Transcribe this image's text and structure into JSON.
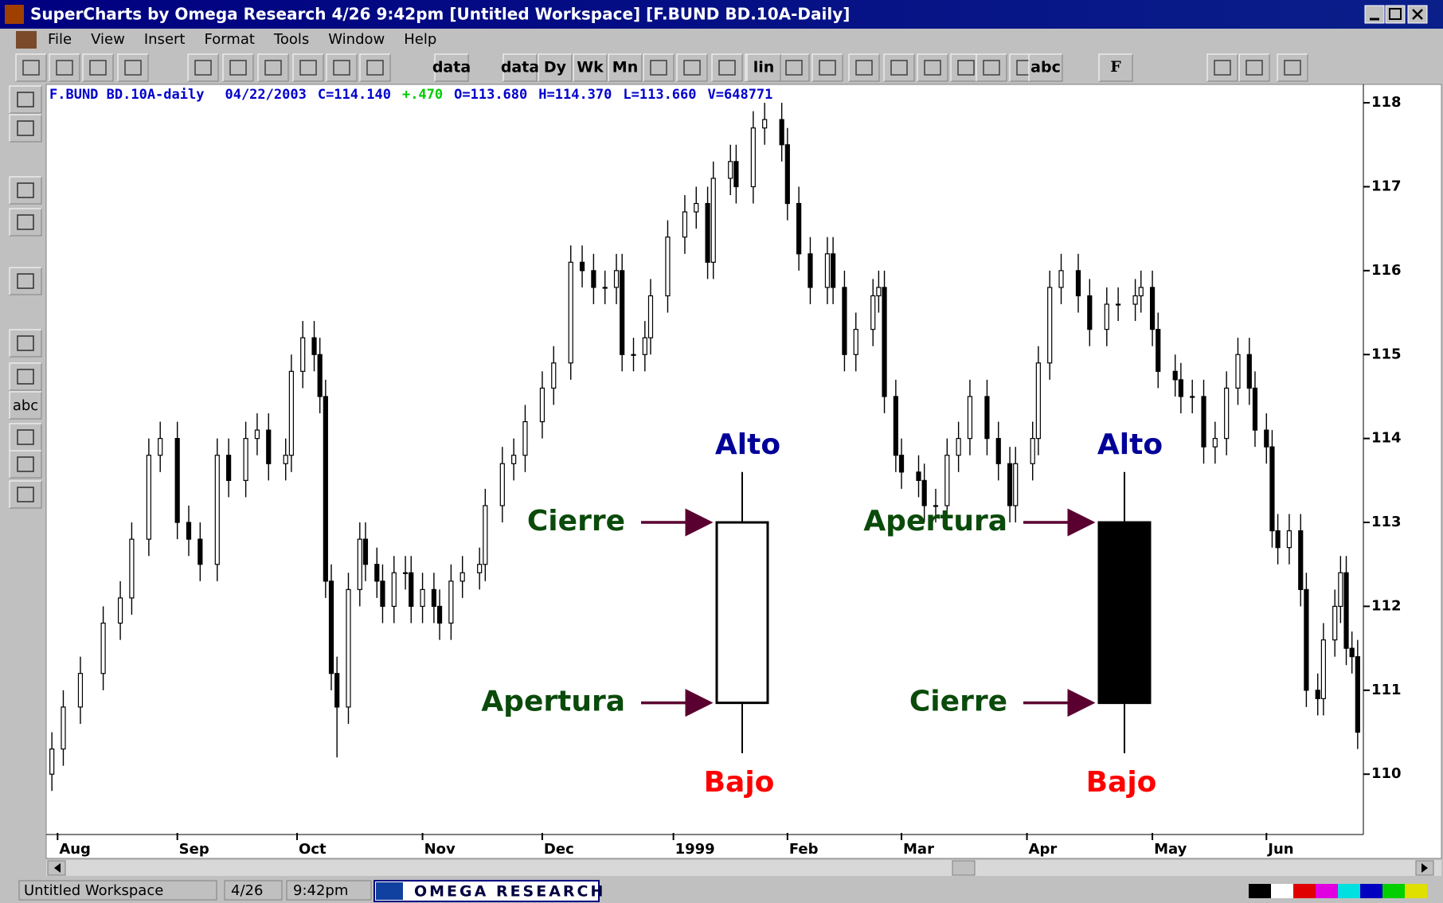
{
  "window_title": "SuperCharts by Omega Research 4/26  9:42pm [Untitled Workspace] [F.BUND BD.10A-Daily]",
  "menu": [
    "File",
    "View",
    "Insert",
    "Format",
    "Tools",
    "Window",
    "Help"
  ],
  "toolbar_labels": [
    "data",
    "data",
    "Dy",
    "Wk",
    "Mn",
    "lin",
    "abc",
    "F"
  ],
  "palette_label": "abc",
  "info": [
    {
      "text": "F.BUND BD.10A-daily",
      "color": "#0000cc"
    },
    {
      "text": "04/22/2003",
      "color": "#0000cc"
    },
    {
      "text": "C=114.140",
      "color": "#0000cc"
    },
    {
      "text": "+.470",
      "color": "#00cc00"
    },
    {
      "text": "O=113.680",
      "color": "#0000cc"
    },
    {
      "text": "H=114.370",
      "color": "#0000cc"
    },
    {
      "text": "L=113.660",
      "color": "#0000cc"
    },
    {
      "text": "V=648771",
      "color": "#0000cc"
    }
  ],
  "chart_data": {
    "type": "candlestick",
    "xlim": [
      0,
      231
    ],
    "ylim": [
      109.3,
      118.2
    ],
    "yticks": [
      110,
      111,
      112,
      113,
      114,
      115,
      116,
      117,
      118
    ],
    "xticks": [
      {
        "value": 2,
        "label": "Aug"
      },
      {
        "value": 23,
        "label": "Sep"
      },
      {
        "value": 44,
        "label": "Oct"
      },
      {
        "value": 66,
        "label": "Nov"
      },
      {
        "value": 87,
        "label": "Dec"
      },
      {
        "value": 110,
        "label": "1999"
      },
      {
        "value": 130,
        "label": "Feb"
      },
      {
        "value": 150,
        "label": "Mar"
      },
      {
        "value": 172,
        "label": "Apr"
      },
      {
        "value": 194,
        "label": "May"
      },
      {
        "value": 214,
        "label": "Jun"
      }
    ],
    "x": [
      1,
      3,
      6,
      10,
      13,
      15,
      18,
      20,
      23,
      25,
      27,
      30,
      32,
      35,
      37,
      39,
      42,
      43,
      45,
      47,
      48,
      49,
      50,
      51,
      53,
      55,
      56,
      58,
      59,
      61,
      63,
      64,
      66,
      68,
      69,
      71,
      73,
      76,
      77,
      80,
      82,
      84,
      87,
      89,
      92,
      94,
      96,
      98,
      100,
      101,
      103,
      105,
      106,
      109,
      112,
      114,
      116,
      117,
      120,
      121,
      124,
      126,
      129,
      130,
      132,
      134,
      137,
      138,
      140,
      142,
      145,
      146,
      147,
      149,
      150,
      153,
      154,
      156,
      158,
      160,
      162,
      165,
      167,
      169,
      170,
      173,
      174,
      176,
      178,
      181,
      183,
      186,
      188,
      191,
      192,
      194,
      195,
      198,
      199,
      201,
      203,
      205,
      207,
      209,
      211,
      212,
      214,
      215,
      216,
      218,
      220,
      221,
      223,
      224,
      226,
      227,
      228,
      229,
      230
    ],
    "open": [
      110.0,
      110.3,
      110.8,
      111.2,
      111.8,
      112.1,
      112.8,
      113.8,
      114.0,
      113.0,
      112.8,
      112.5,
      113.8,
      113.5,
      114.0,
      114.1,
      113.7,
      113.8,
      114.8,
      115.2,
      115.0,
      114.5,
      112.3,
      111.2,
      110.8,
      112.2,
      112.8,
      112.5,
      112.3,
      112.0,
      112.4,
      112.4,
      112.0,
      112.2,
      112.0,
      111.8,
      112.3,
      112.4,
      112.5,
      113.2,
      113.7,
      113.8,
      114.2,
      114.6,
      114.9,
      116.1,
      116.0,
      115.8,
      115.8,
      116.0,
      115.0,
      115.0,
      115.2,
      115.7,
      116.4,
      116.7,
      116.8,
      116.1,
      117.1,
      117.3,
      117.0,
      117.7,
      117.8,
      117.5,
      116.8,
      116.2,
      115.8,
      116.2,
      115.8,
      115.0,
      115.3,
      115.7,
      115.8,
      114.5,
      113.8,
      113.6,
      113.5,
      113.2,
      113.2,
      113.8,
      114.0,
      114.5,
      114.0,
      113.7,
      113.2,
      113.7,
      114.0,
      114.9,
      115.8,
      116.0,
      115.7,
      115.3,
      115.6,
      115.6,
      115.7,
      115.8,
      115.3,
      114.8,
      114.7,
      114.5,
      114.5,
      113.9,
      114.0,
      114.6,
      115.0,
      114.6,
      114.1,
      113.9,
      112.9,
      112.7,
      112.9,
      112.2,
      111.0,
      110.9,
      111.6,
      112.0,
      112.4,
      111.5,
      111.4
    ],
    "high": [
      110.5,
      111.0,
      111.4,
      112.0,
      112.3,
      113.0,
      114.0,
      114.2,
      114.2,
      113.2,
      113.0,
      114.0,
      114.0,
      114.2,
      114.3,
      114.3,
      114.0,
      115.0,
      115.4,
      115.4,
      115.2,
      114.7,
      112.5,
      111.4,
      112.4,
      113.0,
      113.0,
      112.7,
      112.5,
      112.6,
      112.6,
      112.6,
      112.4,
      112.4,
      112.2,
      112.5,
      112.6,
      112.7,
      113.4,
      113.9,
      114.0,
      114.4,
      114.8,
      115.1,
      116.3,
      116.3,
      116.2,
      116.0,
      116.2,
      116.2,
      115.2,
      115.4,
      115.9,
      116.6,
      116.9,
      117.0,
      117.0,
      117.3,
      117.5,
      117.5,
      117.9,
      118.0,
      118.0,
      117.7,
      117.0,
      116.4,
      116.4,
      116.4,
      116.0,
      115.5,
      115.9,
      116.0,
      116.0,
      114.7,
      114.0,
      113.8,
      113.7,
      113.4,
      114.0,
      114.2,
      114.7,
      114.7,
      114.2,
      113.9,
      113.9,
      114.2,
      115.1,
      116.0,
      116.2,
      116.2,
      115.9,
      115.8,
      115.8,
      115.9,
      116.0,
      116.0,
      115.5,
      115.0,
      114.9,
      114.7,
      114.7,
      114.2,
      114.8,
      115.2,
      115.2,
      114.8,
      114.3,
      114.1,
      113.1,
      113.1,
      113.1,
      112.4,
      111.2,
      111.8,
      112.2,
      112.6,
      112.6,
      111.7,
      111.6
    ],
    "low": [
      109.8,
      110.1,
      110.6,
      111.0,
      111.6,
      111.9,
      112.6,
      113.6,
      112.8,
      112.6,
      112.3,
      112.3,
      113.3,
      113.3,
      113.8,
      113.5,
      113.5,
      113.6,
      114.6,
      114.8,
      114.3,
      112.1,
      111.0,
      110.2,
      110.6,
      112.0,
      112.3,
      112.1,
      111.8,
      111.8,
      112.2,
      111.8,
      111.8,
      111.8,
      111.6,
      111.6,
      112.1,
      112.2,
      112.3,
      113.0,
      113.5,
      113.6,
      114.0,
      114.4,
      114.7,
      115.8,
      115.6,
      115.6,
      115.6,
      114.8,
      114.8,
      114.8,
      115.0,
      115.5,
      116.2,
      116.5,
      115.9,
      115.9,
      116.9,
      116.8,
      116.8,
      117.5,
      117.3,
      116.6,
      116.0,
      115.6,
      115.6,
      115.6,
      114.8,
      114.8,
      115.1,
      115.5,
      114.3,
      113.6,
      113.4,
      113.3,
      113.0,
      113.0,
      113.0,
      113.6,
      113.8,
      113.8,
      113.5,
      113.0,
      113.0,
      113.5,
      113.8,
      114.7,
      115.6,
      115.5,
      115.1,
      115.1,
      115.4,
      115.4,
      115.5,
      115.1,
      114.6,
      114.5,
      114.3,
      114.3,
      113.7,
      113.7,
      113.8,
      114.4,
      114.4,
      113.9,
      113.7,
      112.7,
      112.5,
      112.5,
      112.0,
      110.8,
      110.7,
      110.7,
      111.4,
      111.8,
      111.3,
      111.2,
      110.3
    ],
    "close": [
      110.3,
      110.8,
      111.2,
      111.8,
      112.1,
      112.8,
      113.8,
      114.0,
      113.0,
      112.8,
      112.5,
      113.8,
      113.5,
      114.0,
      114.1,
      113.7,
      113.8,
      114.8,
      115.2,
      115.0,
      114.5,
      112.3,
      111.2,
      110.8,
      112.2,
      112.8,
      112.5,
      112.3,
      112.0,
      112.4,
      112.4,
      112.0,
      112.2,
      112.0,
      111.8,
      112.3,
      112.4,
      112.5,
      113.2,
      113.7,
      113.8,
      114.2,
      114.6,
      114.9,
      116.1,
      116.0,
      115.8,
      115.8,
      116.0,
      115.0,
      115.0,
      115.2,
      115.7,
      116.4,
      116.7,
      116.8,
      116.1,
      117.1,
      117.3,
      117.0,
      117.7,
      117.8,
      117.5,
      116.8,
      116.2,
      115.8,
      116.2,
      115.8,
      115.0,
      115.3,
      115.7,
      115.8,
      114.5,
      113.8,
      113.6,
      113.5,
      113.2,
      113.2,
      113.8,
      114.0,
      114.5,
      114.0,
      113.7,
      113.2,
      113.7,
      114.0,
      114.9,
      115.8,
      116.0,
      115.7,
      115.3,
      115.6,
      115.6,
      115.7,
      115.8,
      115.3,
      114.8,
      114.7,
      114.5,
      114.5,
      113.9,
      114.0,
      114.6,
      115.0,
      114.6,
      114.1,
      113.9,
      112.9,
      112.7,
      112.9,
      112.2,
      111.0,
      110.9,
      111.6,
      112.0,
      112.4,
      111.5,
      111.4,
      110.5
    ]
  },
  "illustrations": [
    {
      "open": 110.85,
      "high": 113.6,
      "low": 110.25,
      "close": 113.0,
      "high_label": "Alto",
      "close_label": "Cierre",
      "open_label": "Apertura",
      "low_label": "Bajo"
    },
    {
      "open": 113.0,
      "high": 113.6,
      "low": 110.25,
      "close": 110.85,
      "high_label": "Alto",
      "close_label": "Cierre",
      "open_label": "Apertura",
      "low_label": "Bajo"
    }
  ],
  "status": [
    "Untitled Workspace",
    "4/26",
    "9:42pm"
  ],
  "logo": "OMEGA RESEARCH"
}
